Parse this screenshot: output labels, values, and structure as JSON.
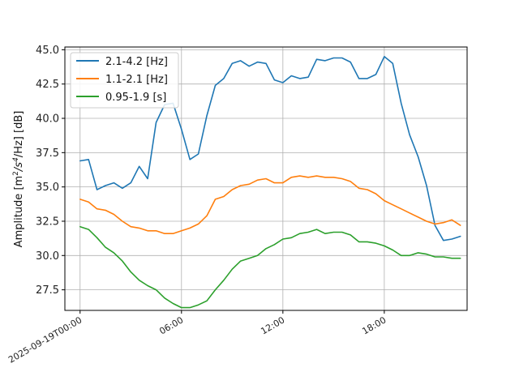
{
  "chart_data": {
    "type": "line",
    "ylabel": "Amplitude [m²/s⁴/Hz] [dB]",
    "ylabel_parts": {
      "prefix": "Amplitude [m",
      "sup1": "2",
      "mid": "/s",
      "sup2": "4",
      "suffix": "/Hz] [dB]"
    },
    "xlabel": "",
    "ylim": [
      26.0,
      45.2
    ],
    "xlim_hours": [
      -0.9,
      22.9
    ],
    "yticks": [
      27.5,
      30.0,
      32.5,
      35.0,
      37.5,
      40.0,
      42.5,
      45.0
    ],
    "ytick_labels": [
      "27.5",
      "30.0",
      "32.5",
      "35.0",
      "37.5",
      "40.0",
      "42.5",
      "45.0"
    ],
    "xticks_hours": [
      0,
      6,
      12,
      18
    ],
    "xtick_labels": [
      "2025-09-19T00:00",
      "06:00",
      "12:00",
      "18:00"
    ],
    "grid": true,
    "legend_position": "upper-left",
    "x_hours": [
      0,
      0.5,
      1,
      1.5,
      2,
      2.5,
      3,
      3.5,
      4,
      4.5,
      5,
      5.5,
      6,
      6.5,
      7,
      7.5,
      8,
      8.5,
      9,
      9.5,
      10,
      10.5,
      11,
      11.5,
      12,
      12.5,
      13,
      13.5,
      14,
      14.5,
      15,
      15.5,
      16,
      16.5,
      17,
      17.5,
      18,
      18.5,
      19,
      19.5,
      20,
      20.5,
      21,
      21.5,
      22,
      22.5
    ],
    "series": [
      {
        "name": "2.1-4.2 [Hz]",
        "color": "#1f77b4",
        "values": [
          36.9,
          37.0,
          34.8,
          35.1,
          35.3,
          34.9,
          35.3,
          36.5,
          35.6,
          39.7,
          41.0,
          41.1,
          39.2,
          37.0,
          37.4,
          40.2,
          42.4,
          42.9,
          44.0,
          44.2,
          43.8,
          44.1,
          44.0,
          42.8,
          42.6,
          43.1,
          42.9,
          43.0,
          44.3,
          44.2,
          44.4,
          44.4,
          44.1,
          42.9,
          42.9,
          43.2,
          44.5,
          44.0,
          41.1,
          38.8,
          37.2,
          35.1,
          32.2,
          31.1,
          31.2,
          31.4
        ]
      },
      {
        "name": "1.1-2.1 [Hz]",
        "color": "#ff7f0e",
        "values": [
          34.1,
          33.9,
          33.4,
          33.3,
          33.0,
          32.5,
          32.1,
          32.0,
          31.8,
          31.8,
          31.6,
          31.6,
          31.8,
          32.0,
          32.3,
          32.9,
          34.1,
          34.3,
          34.8,
          35.1,
          35.2,
          35.5,
          35.6,
          35.3,
          35.3,
          35.7,
          35.8,
          35.7,
          35.8,
          35.7,
          35.7,
          35.6,
          35.4,
          34.9,
          34.8,
          34.5,
          34.0,
          33.7,
          33.4,
          33.1,
          32.8,
          32.5,
          32.3,
          32.4,
          32.6,
          32.2
        ]
      },
      {
        "name": "0.95-1.9 [s]",
        "color": "#2ca02c",
        "values": [
          32.1,
          31.9,
          31.3,
          30.6,
          30.2,
          29.6,
          28.8,
          28.2,
          27.8,
          27.5,
          26.9,
          26.5,
          26.2,
          26.2,
          26.4,
          26.7,
          27.5,
          28.2,
          29.0,
          29.6,
          29.8,
          30.0,
          30.5,
          30.8,
          31.2,
          31.3,
          31.6,
          31.7,
          31.9,
          31.6,
          31.7,
          31.7,
          31.5,
          31.0,
          31.0,
          30.9,
          30.7,
          30.4,
          30.0,
          30.0,
          30.2,
          30.1,
          29.9,
          29.9,
          29.8,
          29.8
        ]
      }
    ]
  }
}
